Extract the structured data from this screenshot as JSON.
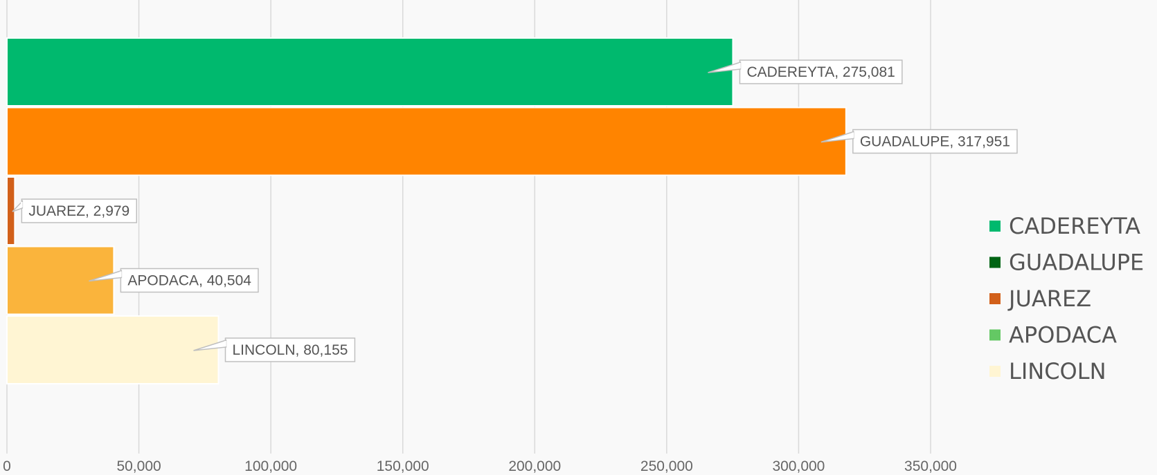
{
  "chart_data": {
    "type": "bar",
    "orientation": "horizontal",
    "title": "",
    "xlabel": "",
    "ylabel": "",
    "xlim": [
      0,
      350000
    ],
    "ticks": [
      0,
      50000,
      100000,
      150000,
      200000,
      250000,
      300000,
      350000
    ],
    "tick_labels": [
      "0",
      "50,000",
      "100,000",
      "150,000",
      "200,000",
      "250,000",
      "300,000",
      "350,000"
    ],
    "grid": true,
    "legend_position": "right",
    "categories": [
      "CADEREYTA",
      "GUADALUPE",
      "JUAREZ",
      "APODACA",
      "LINCOLN"
    ],
    "values": [
      275081,
      317951,
      2979,
      40504,
      80155
    ],
    "data_labels": [
      "CADEREYTA, 275,081",
      "GUADALUPE, 317,951",
      "JUAREZ, 2,979",
      "APODACA, 40,504",
      "LINCOLN, 80,155"
    ],
    "bar_colors": [
      "#00b96e",
      "#ff8400",
      "#d2601a",
      "#fab43c",
      "#fff5d3"
    ],
    "legend": [
      {
        "label": "CADEREYTA",
        "color": "#00b96e"
      },
      {
        "label": "GUADALUPE",
        "color": "#006414"
      },
      {
        "label": "JUAREZ",
        "color": "#d2601a"
      },
      {
        "label": "APODACA",
        "color": "#64c864"
      },
      {
        "label": "LINCOLN",
        "color": "#fff5d3"
      }
    ]
  }
}
